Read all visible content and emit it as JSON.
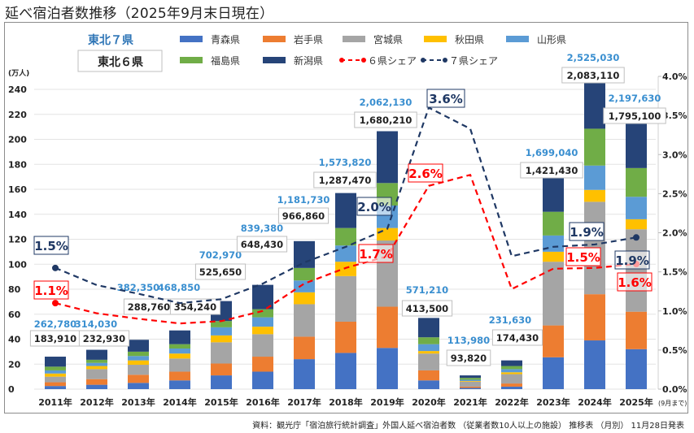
{
  "page": {
    "title": "延べ宿泊者数推移（2025年9月末日現在）",
    "source_note": "資料：観光庁「宿泊旅行統計調査」外国人延べ宿泊者数 （従業者数10人以上の施設） 推移表 （月別） 11月28日発表"
  },
  "chart_data": {
    "type": "bar",
    "stacked": true,
    "title": "延べ宿泊者数推移（2025年9月末日現在）",
    "ylabel": "(万人)",
    "ylim": [
      0,
      240
    ],
    "yticks": [
      0,
      20,
      40,
      60,
      80,
      100,
      120,
      140,
      160,
      180,
      200,
      220,
      240
    ],
    "y2lim": [
      0,
      4.0
    ],
    "y2ticks": [
      "0.0%",
      "0.5%",
      "1.0%",
      "1.5%",
      "2.0%",
      "2.5%",
      "3.0%",
      "3.5%",
      "4.0%"
    ],
    "grid": true,
    "legend_position": "top",
    "group_labels": {
      "seven": "東北７県",
      "six": "東北６県"
    },
    "categories": [
      "2011年",
      "2012年",
      "2013年",
      "2014年",
      "2015年",
      "2016年",
      "2017年",
      "2018年",
      "2019年",
      "2020年",
      "2021年",
      "2022年",
      "2023年",
      "2024年",
      "2025年"
    ],
    "category_note_last": "(9月まで)",
    "series": [
      {
        "name": "青森県",
        "color": "#4472c4",
        "values": [
          2.5,
          3.5,
          5,
          7,
          11,
          14,
          24,
          29,
          33,
          7,
          1,
          2,
          25.5,
          39,
          32
        ]
      },
      {
        "name": "岩手県",
        "color": "#ed7d31",
        "values": [
          3,
          4.5,
          6.5,
          7,
          9.5,
          12,
          18,
          25,
          33,
          8,
          1,
          2.5,
          25.5,
          37,
          30
        ]
      },
      {
        "name": "宮城県",
        "color": "#a5a5a5",
        "values": [
          4.5,
          8,
          8,
          10.5,
          17,
          18,
          26,
          36.5,
          53,
          13.5,
          4,
          7.5,
          51,
          74,
          66
        ]
      },
      {
        "name": "秋田県",
        "color": "#ffc000",
        "values": [
          2.5,
          2.5,
          3.5,
          4,
          5.5,
          6,
          9.5,
          11.5,
          10,
          2,
          0.5,
          1.5,
          8,
          9.5,
          8
        ]
      },
      {
        "name": "山形県",
        "color": "#5b9bd5",
        "values": [
          2.5,
          2.5,
          3.5,
          4,
          6.5,
          7.5,
          9.5,
          13,
          18,
          5.5,
          1,
          2.5,
          13,
          19.5,
          18
        ]
      },
      {
        "name": "福島県",
        "color": "#70ad47",
        "values": [
          3,
          2.5,
          3.5,
          3.5,
          5,
          6.5,
          10,
          14,
          18,
          5.5,
          1.5,
          2.5,
          19,
          29.5,
          23
        ]
      },
      {
        "name": "新潟県",
        "color": "#264478",
        "values": [
          8,
          8,
          9.5,
          11,
          16,
          19.5,
          21.5,
          28,
          41.5,
          15.5,
          2,
          4.5,
          28,
          42,
          42.5
        ]
      }
    ],
    "totals_7": [
      "262,780",
      "314,030",
      "382,350",
      "468,850",
      "702,970",
      "839,380",
      "1,181,730",
      "1,573,820",
      "2,062,130",
      "571,210",
      "113,980",
      "231,630",
      "1,699,040",
      "2,525,030",
      "2,197,630"
    ],
    "totals_6": [
      "183,910",
      "232,930",
      "288,760",
      "354,240",
      "525,650",
      "648,430",
      "966,860",
      "1,287,470",
      "1,680,210",
      "413,500",
      "93,820",
      "174,430",
      "1,421,430",
      "2,083,110",
      "1,795,100"
    ],
    "share_series": [
      {
        "name": "６県シェア",
        "color": "#ff0000",
        "axis": "right",
        "style": "dashed",
        "values": [
          1.1,
          0.97,
          0.9,
          0.84,
          0.87,
          1.0,
          1.35,
          1.55,
          1.7,
          2.6,
          2.74,
          1.28,
          1.54,
          1.55,
          1.6
        ],
        "labels": {
          "0": "1.1%",
          "8": "1.7%",
          "9": "2.6%",
          "13": "1.5%",
          "14": "1.6%"
        }
      },
      {
        "name": "７県シェア",
        "color": "#1f3864",
        "axis": "right",
        "style": "dashed",
        "values": [
          1.55,
          1.33,
          1.22,
          1.1,
          1.15,
          1.35,
          1.62,
          1.82,
          2.05,
          3.6,
          3.33,
          1.7,
          1.82,
          1.85,
          1.94
        ],
        "labels": {
          "0": "1.5%",
          "8": "2.0%",
          "9": "3.6%",
          "13": "1.9%",
          "14": "1.9%"
        }
      }
    ]
  }
}
